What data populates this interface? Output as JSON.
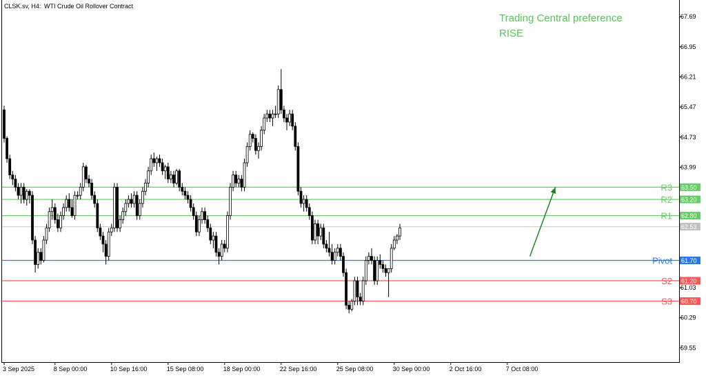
{
  "header": {
    "symbol": "CLSK.sv, H4:",
    "description": "WTI Crude Oil Rollover Contract"
  },
  "preference": {
    "title": "Trading Central preference",
    "direction": "RISE"
  },
  "colors": {
    "resistance": "#66cc66",
    "support": "#ff5555",
    "pivot": "#2a7ae2",
    "preference_text": "#55c855",
    "arrow": "#1a8a1a",
    "candle": "#000000",
    "current_price_line": "#c8c8c8",
    "current_price_label": "#c0c0c0"
  },
  "chart_data": {
    "type": "candlestick",
    "ylim": [
      59.2,
      68.1
    ],
    "y_ticks": [
      {
        "value": 67.69,
        "label": "67.69"
      },
      {
        "value": 66.95,
        "label": "66.95"
      },
      {
        "value": 66.21,
        "label": "66.21"
      },
      {
        "value": 65.47,
        "label": "65.47"
      },
      {
        "value": 64.73,
        "label": "64.73"
      },
      {
        "value": 63.99,
        "label": "63.99"
      },
      {
        "value": 61.03,
        "label": "61.03"
      },
      {
        "value": 60.29,
        "label": "60.29"
      },
      {
        "value": 59.55,
        "label": "59.55"
      }
    ],
    "x_ticks": [
      {
        "index": 0,
        "label": "3 Sep 2025"
      },
      {
        "index": 18,
        "label": "8 Sep 00:00"
      },
      {
        "index": 38,
        "label": "10 Sep 16:00"
      },
      {
        "index": 58,
        "label": "15 Sep 08:00"
      },
      {
        "index": 78,
        "label": "18 Sep 00:00"
      },
      {
        "index": 98,
        "label": "22 Sep 16:00"
      },
      {
        "index": 118,
        "label": "25 Sep 08:00"
      },
      {
        "index": 138,
        "label": "30 Sep 00:00"
      },
      {
        "index": 158,
        "label": "2 Oct 16:00"
      },
      {
        "index": 178,
        "label": "7 Oct 08:00"
      }
    ],
    "levels": [
      {
        "name": "R3",
        "value": 63.5,
        "label": "63.50",
        "kind": "resistance"
      },
      {
        "name": "R2",
        "value": 63.2,
        "label": "63.20",
        "kind": "resistance"
      },
      {
        "name": "R1",
        "value": 62.8,
        "label": "62.80",
        "kind": "resistance"
      },
      {
        "name": "Pivot",
        "value": 61.7,
        "label": "61.70",
        "kind": "pivot"
      },
      {
        "name": "S2",
        "value": 61.2,
        "label": "61.20",
        "kind": "support"
      },
      {
        "name": "S3",
        "value": 60.7,
        "label": "60.70",
        "kind": "support"
      }
    ],
    "current_price": {
      "value": 62.53,
      "label": "62.53"
    },
    "arrow": {
      "from_index": 186,
      "from_value": 61.8,
      "to_index": 195,
      "to_value": 63.5
    },
    "candles": [
      [
        65.4,
        65.5,
        64.6,
        64.7
      ],
      [
        64.7,
        64.75,
        64.1,
        64.2
      ],
      [
        64.2,
        64.3,
        63.7,
        63.8
      ],
      [
        63.8,
        63.9,
        63.55,
        63.7
      ],
      [
        63.7,
        63.8,
        63.4,
        63.5
      ],
      [
        63.5,
        63.6,
        63.2,
        63.3
      ],
      [
        63.3,
        63.6,
        63.1,
        63.5
      ],
      [
        63.5,
        63.6,
        63.1,
        63.2
      ],
      [
        63.2,
        63.45,
        63.05,
        63.4
      ],
      [
        63.4,
        63.45,
        63.1,
        63.3
      ],
      [
        63.3,
        63.4,
        62.1,
        62.2
      ],
      [
        62.2,
        62.3,
        61.4,
        61.6
      ],
      [
        61.6,
        62.0,
        61.5,
        61.9
      ],
      [
        61.9,
        62.0,
        61.6,
        61.7
      ],
      [
        61.7,
        62.3,
        61.65,
        62.2
      ],
      [
        62.2,
        62.6,
        62.1,
        62.5
      ],
      [
        62.5,
        63.0,
        62.4,
        62.9
      ],
      [
        62.9,
        63.2,
        62.7,
        63.0
      ],
      [
        63.0,
        63.1,
        62.6,
        62.7
      ],
      [
        62.7,
        62.85,
        62.4,
        62.5
      ],
      [
        62.5,
        62.9,
        62.4,
        62.8
      ],
      [
        62.8,
        63.1,
        62.7,
        63.0
      ],
      [
        63.0,
        63.3,
        62.9,
        63.2
      ],
      [
        63.2,
        63.35,
        62.9,
        63.0
      ],
      [
        63.0,
        63.2,
        62.75,
        62.8
      ],
      [
        62.8,
        63.4,
        62.7,
        63.3
      ],
      [
        63.3,
        63.4,
        63.2,
        63.3
      ],
      [
        63.3,
        63.6,
        63.2,
        63.5
      ],
      [
        63.5,
        64.1,
        63.4,
        64.0
      ],
      [
        64.0,
        64.05,
        63.6,
        63.7
      ],
      [
        63.7,
        63.8,
        63.5,
        63.6
      ],
      [
        63.6,
        63.7,
        63.2,
        63.3
      ],
      [
        63.3,
        63.4,
        63.0,
        63.1
      ],
      [
        63.1,
        63.2,
        62.4,
        62.5
      ],
      [
        62.5,
        62.6,
        62.2,
        62.3
      ],
      [
        62.3,
        62.4,
        61.9,
        62.1
      ],
      [
        62.1,
        62.2,
        61.6,
        61.8
      ],
      [
        61.8,
        62.5,
        61.7,
        62.4
      ],
      [
        62.4,
        62.6,
        62.3,
        62.5
      ],
      [
        62.5,
        63.6,
        62.4,
        63.5
      ],
      [
        63.5,
        63.6,
        62.4,
        62.5
      ],
      [
        62.5,
        62.8,
        62.4,
        62.7
      ],
      [
        62.7,
        63.0,
        62.6,
        62.9
      ],
      [
        62.9,
        63.2,
        62.8,
        63.1
      ],
      [
        63.1,
        63.3,
        63.0,
        63.2
      ],
      [
        63.2,
        63.35,
        63.0,
        63.1
      ],
      [
        63.1,
        63.4,
        63.0,
        63.3
      ],
      [
        63.3,
        63.4,
        62.7,
        62.8
      ],
      [
        62.8,
        63.2,
        62.7,
        63.1
      ],
      [
        63.1,
        63.5,
        63.0,
        63.4
      ],
      [
        63.4,
        63.7,
        63.3,
        63.6
      ],
      [
        63.6,
        64.0,
        63.5,
        63.9
      ],
      [
        63.9,
        64.3,
        63.8,
        64.2
      ],
      [
        64.2,
        64.35,
        64.0,
        64.1
      ],
      [
        64.1,
        64.25,
        63.9,
        64.2
      ],
      [
        64.2,
        64.3,
        64.0,
        64.1
      ],
      [
        64.1,
        64.2,
        63.8,
        63.9
      ],
      [
        63.9,
        64.05,
        63.7,
        64.0
      ],
      [
        64.0,
        64.1,
        63.6,
        63.7
      ],
      [
        63.7,
        63.9,
        63.6,
        63.8
      ],
      [
        63.8,
        63.9,
        63.5,
        63.6
      ],
      [
        63.6,
        63.95,
        63.55,
        63.9
      ],
      [
        63.9,
        63.95,
        63.4,
        63.5
      ],
      [
        63.5,
        63.6,
        63.3,
        63.4
      ],
      [
        63.4,
        63.5,
        63.2,
        63.3
      ],
      [
        63.3,
        63.4,
        63.1,
        63.2
      ],
      [
        63.2,
        63.3,
        62.9,
        63.0
      ],
      [
        63.0,
        63.1,
        62.7,
        62.8
      ],
      [
        62.8,
        62.9,
        62.3,
        62.4
      ],
      [
        62.4,
        62.8,
        62.3,
        62.7
      ],
      [
        62.7,
        63.0,
        62.6,
        62.9
      ],
      [
        62.9,
        63.0,
        62.6,
        62.7
      ],
      [
        62.7,
        62.8,
        62.4,
        62.5
      ],
      [
        62.5,
        62.6,
        62.1,
        62.2
      ],
      [
        62.2,
        62.4,
        62.0,
        62.3
      ],
      [
        62.3,
        62.4,
        61.8,
        61.9
      ],
      [
        61.9,
        62.0,
        61.6,
        61.8
      ],
      [
        61.8,
        62.2,
        61.7,
        62.1
      ],
      [
        62.1,
        62.2,
        61.9,
        62.0
      ],
      [
        62.0,
        62.9,
        61.9,
        62.8
      ],
      [
        62.8,
        63.6,
        62.7,
        63.5
      ],
      [
        63.5,
        63.9,
        63.4,
        63.8
      ],
      [
        63.8,
        63.9,
        63.5,
        63.6
      ],
      [
        63.6,
        63.8,
        63.5,
        63.7
      ],
      [
        63.7,
        63.8,
        63.4,
        63.5
      ],
      [
        63.5,
        64.2,
        63.4,
        64.1
      ],
      [
        64.1,
        64.6,
        64.0,
        64.5
      ],
      [
        64.5,
        64.9,
        64.4,
        64.8
      ],
      [
        64.8,
        64.85,
        64.6,
        64.7
      ],
      [
        64.7,
        64.8,
        64.3,
        64.4
      ],
      [
        64.4,
        64.6,
        64.2,
        64.5
      ],
      [
        64.5,
        65.0,
        64.4,
        64.9
      ],
      [
        64.9,
        65.3,
        64.8,
        65.2
      ],
      [
        65.2,
        65.4,
        65.1,
        65.3
      ],
      [
        65.3,
        65.4,
        65.1,
        65.2
      ],
      [
        65.2,
        65.4,
        65.0,
        65.3
      ],
      [
        65.3,
        65.5,
        65.2,
        65.3
      ],
      [
        65.3,
        66.0,
        65.2,
        65.9
      ],
      [
        65.9,
        66.4,
        65.3,
        65.4
      ],
      [
        65.4,
        65.5,
        65.1,
        65.2
      ],
      [
        65.2,
        65.3,
        64.9,
        65.1
      ],
      [
        65.1,
        65.4,
        65.0,
        65.3
      ],
      [
        65.3,
        65.4,
        64.9,
        65.0
      ],
      [
        65.0,
        65.1,
        64.4,
        64.5
      ],
      [
        64.5,
        64.6,
        63.3,
        63.4
      ],
      [
        63.4,
        63.5,
        63.0,
        63.1
      ],
      [
        63.1,
        63.3,
        62.9,
        63.2
      ],
      [
        63.2,
        63.3,
        62.9,
        63.0
      ],
      [
        63.0,
        63.1,
        62.7,
        62.8
      ],
      [
        62.8,
        62.9,
        62.1,
        62.2
      ],
      [
        62.2,
        62.7,
        62.1,
        62.6
      ],
      [
        62.6,
        62.7,
        62.1,
        62.3
      ],
      [
        62.3,
        62.6,
        62.2,
        62.5
      ],
      [
        62.5,
        62.6,
        62.0,
        62.1
      ],
      [
        62.1,
        62.2,
        61.9,
        62.0
      ],
      [
        62.0,
        62.4,
        61.8,
        61.9
      ],
      [
        61.9,
        62.1,
        61.6,
        61.7
      ],
      [
        61.7,
        62.0,
        61.6,
        61.9
      ],
      [
        61.9,
        62.1,
        61.8,
        62.0
      ],
      [
        62.0,
        62.1,
        61.7,
        61.8
      ],
      [
        61.8,
        61.9,
        61.3,
        61.4
      ],
      [
        61.4,
        61.5,
        60.5,
        60.6
      ],
      [
        60.6,
        60.7,
        60.4,
        60.5
      ],
      [
        60.5,
        60.75,
        60.45,
        60.7
      ],
      [
        60.7,
        61.3,
        60.6,
        61.2
      ],
      [
        61.2,
        61.3,
        60.6,
        60.8
      ],
      [
        60.8,
        60.9,
        60.6,
        60.7
      ],
      [
        60.7,
        61.3,
        60.6,
        61.2
      ],
      [
        61.2,
        61.8,
        61.1,
        61.7
      ],
      [
        61.7,
        61.9,
        61.6,
        61.8
      ],
      [
        61.8,
        62.0,
        61.6,
        61.7
      ],
      [
        61.7,
        61.8,
        61.1,
        61.2
      ],
      [
        61.2,
        61.8,
        61.1,
        61.7
      ],
      [
        61.7,
        61.85,
        61.5,
        61.6
      ],
      [
        61.6,
        61.7,
        61.4,
        61.5
      ],
      [
        61.5,
        61.6,
        61.3,
        61.4
      ],
      [
        61.4,
        61.5,
        60.8,
        61.5
      ],
      [
        61.5,
        62.1,
        61.4,
        62.0
      ],
      [
        62.0,
        62.3,
        61.95,
        62.2
      ],
      [
        62.2,
        62.35,
        62.1,
        62.3
      ],
      [
        62.3,
        62.6,
        62.2,
        62.5
      ]
    ]
  }
}
